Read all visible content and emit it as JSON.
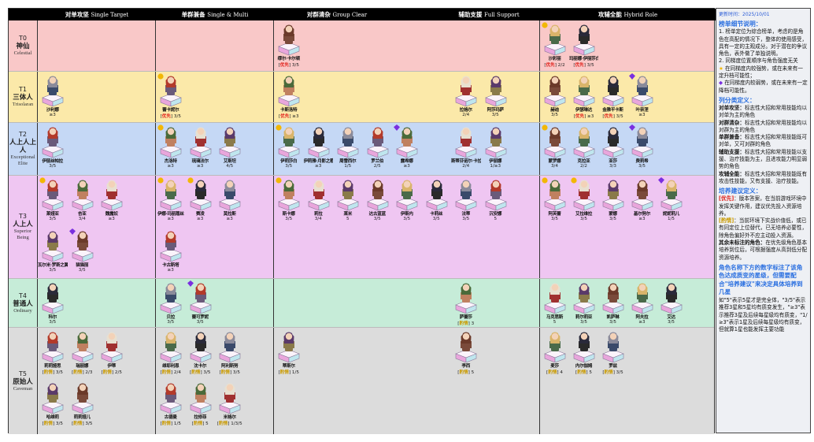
{
  "columns": [
    {
      "cn": "对单攻坚",
      "en": "Single Target"
    },
    {
      "cn": "单群兼备",
      "en": "Single & Multi"
    },
    {
      "cn": "对群清杂",
      "en": "Group Clear"
    },
    {
      "cn": "辅助支援",
      "en": "Full Support"
    },
    {
      "cn": "攻辅全能",
      "en": "Hybrid Role"
    }
  ],
  "colors": {
    "T0": "#f9c8c8",
    "T1": "#fbe9a9",
    "T2": "#c5d8f5",
    "T3": "#efc6f2",
    "T4": "#c6ecd8",
    "T5": "#dcdcdc",
    "priority": "#e0201a",
    "optional": "#c99a00",
    "rise": "#f2b705",
    "fall": "#7a2fe0"
  },
  "tiers": [
    {
      "id": "T0",
      "cn": "神仙",
      "en": "Celestial",
      "cells": {
        "single_target": [],
        "single_multi": [],
        "group_clear": [
          {
            "name": "缪尔·卡尔顿",
            "tag": "优先",
            "stars": "3/5"
          }
        ],
        "full_support": [],
        "hybrid": [
          {
            "name": "沙彩丽",
            "tag": "优先",
            "stars": "2/2",
            "mark": "rise"
          },
          {
            "name": "玛丽娜·伊丽莎白",
            "tag": "优先",
            "stars": "3/5"
          }
        ]
      }
    },
    {
      "id": "T1",
      "cn": "三体人",
      "en": "Trisolaran",
      "cells": {
        "single_target": [
          {
            "name": "沙利娜",
            "stars": "≥3"
          }
        ],
        "single_multi": [
          {
            "name": "蕾卡妮尔",
            "tag": "优先",
            "stars": "3/5",
            "mark": "rise"
          }
        ],
        "group_clear": [
          {
            "name": "卡斯洛特",
            "tag": "优先",
            "stars": "≥3"
          }
        ],
        "full_support": [
          {
            "name": "拉格尔",
            "stars": "2/4"
          },
          {
            "name": "阿莎玛萨",
            "stars": "3/5"
          }
        ],
        "hybrid": [
          {
            "name": "赫迪",
            "stars": "3/5"
          },
          {
            "name": "伊瑟琳达",
            "tag": "优先",
            "stars": "≥3"
          },
          {
            "name": "金雅平卡斯",
            "tag": "优先",
            "stars": "3/5"
          },
          {
            "name": "叶奈涅",
            "stars": "≥3",
            "mark": "fall"
          }
        ]
      }
    },
    {
      "id": "T2",
      "cn": "人上人上人",
      "en": "Exceptional Elite",
      "cells": {
        "single_target": [
          {
            "name": "伊丽丝帕拉",
            "stars": "3/5"
          }
        ],
        "single_multi": [
          {
            "name": "杰洛特",
            "stars": "≥3",
            "mark": "rise"
          },
          {
            "name": "琉璃法尔",
            "stars": "≥3"
          },
          {
            "name": "艾斯坦",
            "stars": "4/5"
          },
          {
            "name": "花凰",
            "stars": "≥3",
            "mark": "fall"
          }
        ],
        "group_clear": [
          {
            "name": "伊莉莎白",
            "stars": "3/5",
            "mark": "rise"
          },
          {
            "name": "伊莉雅·月影之歌",
            "stars": "≥3"
          },
          {
            "name": "周雪西尔",
            "stars": "1/5"
          },
          {
            "name": "罗兰伯",
            "stars": "2/5"
          },
          {
            "name": "露希娜",
            "stars": "≥3",
            "mark": "fall"
          }
        ],
        "full_support": [
          {
            "name": "斯蒂芬诺尔·卡拉尔",
            "stars": "2/4"
          },
          {
            "name": "伊丽娜",
            "stars": "1/≥3"
          }
        ],
        "hybrid": [
          {
            "name": "蒙罗娜",
            "stars": "3/4",
            "mark": "rise"
          },
          {
            "name": "克拉亚",
            "stars": "2/2"
          },
          {
            "name": "亚莎",
            "stars": "3/3"
          },
          {
            "name": "费莉希",
            "stars": "3/5",
            "mark": "fall"
          }
        ]
      }
    },
    {
      "id": "T3",
      "cn": "人上人",
      "en": "Superior Being",
      "cells": {
        "single_target": [
          {
            "name": "莱娅亚",
            "stars": "3/5",
            "mark": "rise"
          },
          {
            "name": "杏亚",
            "stars": "3/4"
          },
          {
            "name": "魏露奴",
            "stars": "≥3"
          },
          {
            "name": "瓦尔米·罗斯之翼",
            "stars": "3/5"
          },
          {
            "name": "猫猫丽",
            "stars": "3/5",
            "mark": "fall"
          }
        ],
        "single_multi": [
          {
            "name": "伊娜·玛丽蔻丝",
            "stars": "≥3",
            "mark": "rise"
          },
          {
            "name": "赛凌",
            "stars": "≥3",
            "mark": "rise"
          },
          {
            "name": "莫拉斯",
            "stars": "≥3"
          },
          {
            "name": "卡古斯塔",
            "stars": "≥3"
          }
        ],
        "group_clear": [
          {
            "name": "斯卡娜",
            "stars": "3/5",
            "mark": "rise"
          },
          {
            "name": "莉拉",
            "stars": "3/4"
          },
          {
            "name": "莱米",
            "stars": "5"
          },
          {
            "name": "达古蓝蓝",
            "stars": "3/5"
          },
          {
            "name": "伊斯内",
            "stars": "3/5"
          },
          {
            "name": "卡莉丝",
            "stars": "3/5"
          }
        ],
        "full_support": [
          {
            "name": "法蒂",
            "stars": "3/5"
          },
          {
            "name": "沉安娜",
            "stars": "5"
          }
        ],
        "hybrid": [
          {
            "name": "阿芙蕾",
            "stars": "3/5",
            "mark": "rise"
          },
          {
            "name": "艾拉维拉",
            "stars": "3/5",
            "mark": "rise"
          },
          {
            "name": "蒙娜",
            "stars": "3/5"
          },
          {
            "name": "基尔努尔",
            "stars": "≥3"
          },
          {
            "name": "妮妮莉儿",
            "stars": "1/5",
            "mark": "fall"
          }
        ]
      }
    },
    {
      "id": "T4",
      "cn": "普通人",
      "en": "Ordinary",
      "cells": {
        "single_target": [
          {
            "name": "科尔",
            "stars": "3/5"
          }
        ],
        "single_multi": [
          {
            "name": "贝拉",
            "stars": "3/5"
          },
          {
            "name": "蕾可罗妮",
            "stars": "3/5",
            "mark": "fall"
          }
        ],
        "group_clear": [],
        "full_support": [
          {
            "name": "萨蕾莎",
            "tag": "酌情",
            "stars": "3"
          }
        ],
        "hybrid": [
          {
            "name": "马克思斯",
            "stars": "5"
          },
          {
            "name": "莉尔莉亚",
            "stars": "3/5"
          },
          {
            "name": "凯萨琳",
            "stars": "3/5"
          },
          {
            "name": "阿夫拉",
            "stars": "≥3"
          },
          {
            "name": "艾达",
            "stars": "3/5"
          },
          {
            "name": "阿琳贝",
            "stars": "3/5"
          }
        ]
      }
    },
    {
      "id": "T5",
      "cn": "原始人",
      "en": "Caveman",
      "cells": {
        "single_target": [
          {
            "name": "莉莉娅思",
            "tag": "酌情",
            "stars": "3/5"
          },
          {
            "name": "瑞丽娜",
            "tag": "酌情",
            "stars": "2/3"
          },
          {
            "name": "伊蒂",
            "tag": "酌情",
            "stars": "2/5"
          },
          {
            "name": "哈维莉",
            "tag": "酌情",
            "stars": "3/5"
          },
          {
            "name": "莉莉娅儿",
            "tag": "酌情",
            "stars": "3/5"
          }
        ],
        "single_multi": [
          {
            "name": "维耶利恩",
            "tag": "酌情",
            "stars": "2/4"
          },
          {
            "name": "沈卡尔",
            "tag": "酌情",
            "stars": "3/5"
          },
          {
            "name": "阿利斯努",
            "tag": "酌情",
            "stars": "3/5"
          },
          {
            "name": "古德曼",
            "tag": "酌情",
            "stars": "1/5"
          },
          {
            "name": "拉修菲",
            "tag": "酌情",
            "stars": "5"
          },
          {
            "name": "米格尔",
            "tag": "酌情",
            "stars": "1/3/5"
          }
        ],
        "group_clear": [
          {
            "name": "蒂斯尔",
            "tag": "酌情",
            "stars": "1/5"
          }
        ],
        "full_support": [
          {
            "name": "李西",
            "tag": "酌情",
            "stars": "5"
          }
        ],
        "hybrid": [
          {
            "name": "麦莎",
            "tag": "酌情",
            "stars": "4"
          },
          {
            "name": "内尔伽姆",
            "tag": "酌情",
            "stars": "5"
          },
          {
            "name": "罗兹",
            "tag": "酌情",
            "stars": "3/5"
          }
        ]
      }
    }
  ],
  "sidebar": {
    "updated": "更新时间：2025/10/01",
    "notes_title": "榜单细节说明：",
    "note1": "1. 榜单定位为综合榜单，考虑的是角色在高配的情况下，整体的使用感受，具有一定的主观成分。对于潜在的争议角色，表外做了单独说明。",
    "note2": "2. 同梯度位置顺序与角色强度无关",
    "rise_text": "在同梯度内较强势，或在未来有一定升档可能性；",
    "fall_text": "在同梯度内较弱势，或在未来有一定降档可能性。",
    "cols_title": "列分类定义：",
    "defs": [
      {
        "k": "对单攻坚：",
        "v": "标志性大招和常用技能均以对单为主的角色"
      },
      {
        "k": "对群清杂：",
        "v": "标志性大招和常用技能均以对群为主的角色"
      },
      {
        "k": "单群兼备：",
        "v": "标志性大招和常用技能既可对单，又可对群的角色"
      },
      {
        "k": "辅助支援：",
        "v": "标志性大招和常用技能以支援、治疗技能为主，且进攻能力明显弱势的角色"
      },
      {
        "k": "攻辅全能：",
        "v": "标志性大招和常用技能既有攻击性技能，又有支援、治疗技能。"
      }
    ],
    "train_title": "培养建议定义：",
    "prio_tag": "[优先]",
    "prio_text": "：版本答案，在当前游戏环境中发挥关键作用，建议优先投入资源培养。",
    "opt_tag": "[酌情]",
    "opt_text": "：当前环境下实战价值低，或已有同定位上位替代，已无培养必要性，除角色偏好外不应主动投入资源。",
    "rest_k": "其余未标注的角色：",
    "rest_v": "在优先级角色基本培养到位后，可根据强度从高到低分配资源培养。",
    "stars_title": "角色名称下方的数字标注了该角色达成质变的星级，但需要配合\"培养建议\"来决定具体培养到几星",
    "stars_text": "如\"5\"表示5星才是完全体，\"3/5\"表示推荐3星和5星均有质变发生，\"≥3\"表示推荐3星及后续每星级均有质变，\"1/≥3\"表示1星及后续每星级均有质变，但就算1星也能发挥主要功能"
  }
}
